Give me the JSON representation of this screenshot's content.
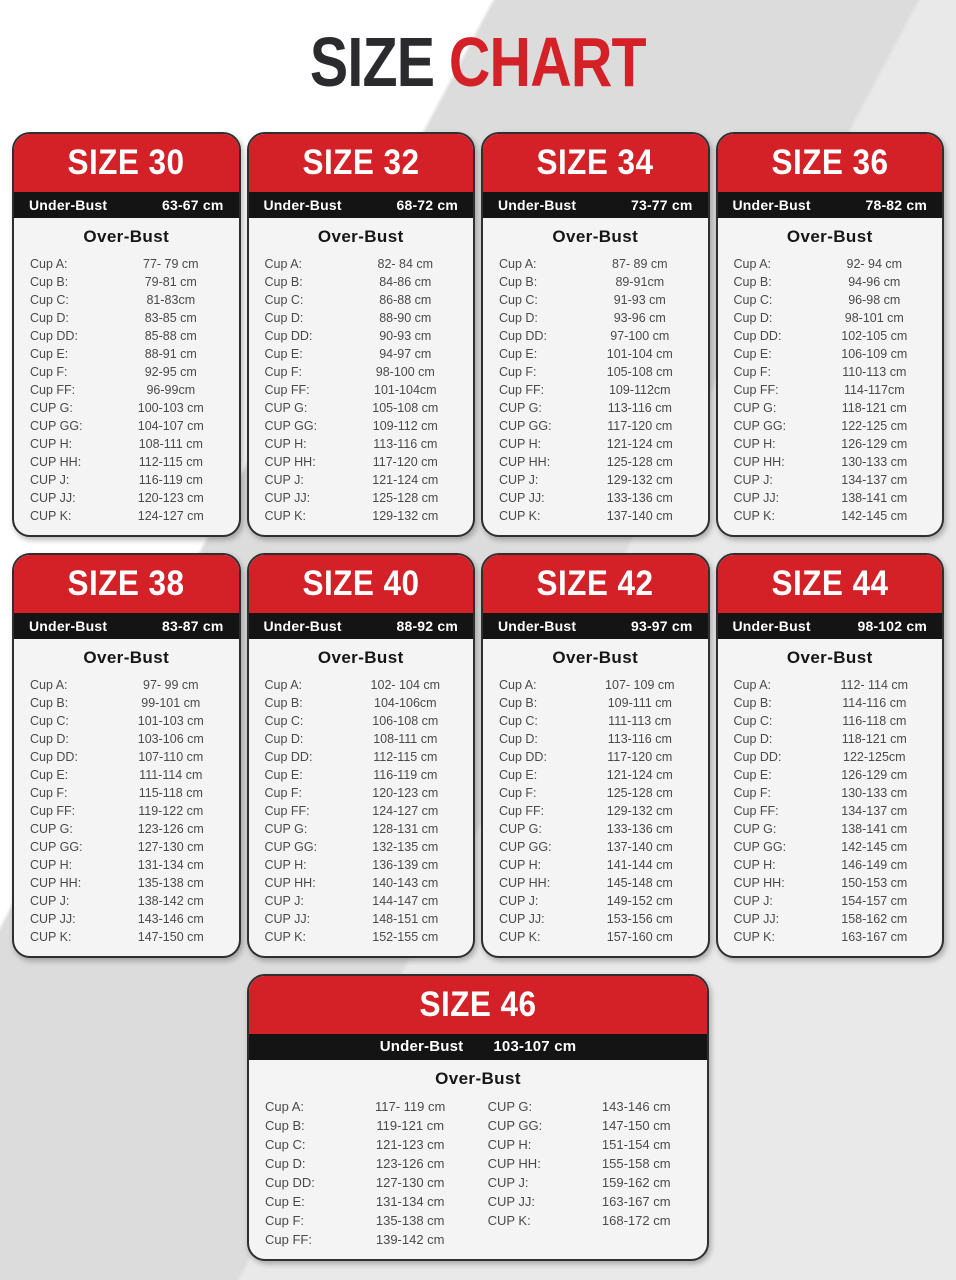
{
  "title": {
    "size": "SIZE",
    "chart": "CHART"
  },
  "labels": {
    "under_bust": "Under-Bust",
    "over_bust": "Over-Bust"
  },
  "colors": {
    "accent_red": "#d42127",
    "bar_black": "#141414",
    "card_bg": "#f4f4f4",
    "title_dark": "#2b2b2e",
    "background_gray": "#dcdcdc"
  },
  "cup_labels": [
    "Cup A:",
    "Cup B:",
    "Cup C:",
    "Cup D:",
    "Cup DD:",
    "Cup E:",
    "Cup F:",
    "Cup FF:",
    "CUP G:",
    "CUP GG:",
    "CUP H:",
    "CUP HH:",
    "CUP J:",
    "CUP JJ:",
    "CUP K:"
  ],
  "cards": [
    {
      "title": "SIZE 30",
      "under_bust": "63-67 cm",
      "values": [
        "77- 79 cm",
        "79-81 cm",
        "81-83cm",
        "83-85 cm",
        "85-88 cm",
        "88-91 cm",
        "92-95 cm",
        "96-99cm",
        "100-103 cm",
        "104-107 cm",
        "108-111 cm",
        "112-115 cm",
        "116-119 cm",
        "120-123 cm",
        "124-127 cm"
      ]
    },
    {
      "title": "SIZE 32",
      "under_bust": "68-72 cm",
      "values": [
        "82- 84 cm",
        "84-86 cm",
        "86-88 cm",
        "88-90 cm",
        "90-93 cm",
        "94-97 cm",
        "98-100 cm",
        "101-104cm",
        "105-108 cm",
        "109-112 cm",
        "113-116 cm",
        "117-120 cm",
        "121-124 cm",
        "125-128 cm",
        "129-132 cm"
      ]
    },
    {
      "title": "SIZE 34",
      "under_bust": "73-77 cm",
      "values": [
        "87- 89 cm",
        "89-91cm",
        "91-93 cm",
        "93-96 cm",
        "97-100 cm",
        "101-104 cm",
        "105-108 cm",
        "109-112cm",
        "113-116 cm",
        "117-120 cm",
        "121-124 cm",
        "125-128 cm",
        "129-132 cm",
        "133-136 cm",
        "137-140 cm"
      ]
    },
    {
      "title": "SIZE 36",
      "under_bust": "78-82 cm",
      "values": [
        "92- 94 cm",
        "94-96 cm",
        "96-98 cm",
        "98-101 cm",
        "102-105 cm",
        "106-109 cm",
        "110-113 cm",
        "114-117cm",
        "118-121 cm",
        "122-125 cm",
        "126-129 cm",
        "130-133 cm",
        "134-137 cm",
        "138-141 cm",
        "142-145 cm"
      ]
    },
    {
      "title": "SIZE 38",
      "under_bust": "83-87 cm",
      "values": [
        "97- 99 cm",
        "99-101 cm",
        "101-103 cm",
        "103-106 cm",
        "107-110 cm",
        "111-114 cm",
        "115-118 cm",
        "119-122 cm",
        "123-126 cm",
        "127-130 cm",
        "131-134 cm",
        "135-138 cm",
        "138-142 cm",
        "143-146 cm",
        "147-150 cm"
      ]
    },
    {
      "title": "SIZE 40",
      "under_bust": "88-92 cm",
      "values": [
        "102- 104 cm",
        "104-106cm",
        "106-108 cm",
        "108-111 cm",
        "112-115 cm",
        "116-119 cm",
        "120-123 cm",
        "124-127 cm",
        "128-131 cm",
        "132-135 cm",
        "136-139 cm",
        "140-143 cm",
        "144-147 cm",
        "148-151 cm",
        "152-155 cm"
      ]
    },
    {
      "title": "SIZE 42",
      "under_bust": "93-97 cm",
      "values": [
        "107- 109 cm",
        "109-111 cm",
        "111-113 cm",
        "113-116 cm",
        "117-120 cm",
        "121-124 cm",
        "125-128 cm",
        "129-132 cm",
        "133-136 cm",
        "137-140 cm",
        "141-144 cm",
        "145-148 cm",
        "149-152 cm",
        "153-156 cm",
        "157-160 cm"
      ]
    },
    {
      "title": "SIZE 44",
      "under_bust": "98-102 cm",
      "values": [
        "112- 114 cm",
        "114-116 cm",
        "116-118 cm",
        "118-121 cm",
        "122-125cm",
        "126-129 cm",
        "130-133 cm",
        "134-137 cm",
        "138-141 cm",
        "142-145 cm",
        "146-149 cm",
        "150-153 cm",
        "154-157 cm",
        "158-162 cm",
        "163-167 cm"
      ]
    },
    {
      "title": "SIZE 46",
      "under_bust": "103-107 cm",
      "values": [
        "117- 119 cm",
        "119-121 cm",
        "121-123 cm",
        "123-126 cm",
        "127-130 cm",
        "131-134 cm",
        "135-138 cm",
        "139-142 cm",
        "143-146 cm",
        "147-150 cm",
        "151-154 cm",
        "155-158 cm",
        "159-162 cm",
        "163-167 cm",
        "168-172 cm"
      ]
    }
  ]
}
